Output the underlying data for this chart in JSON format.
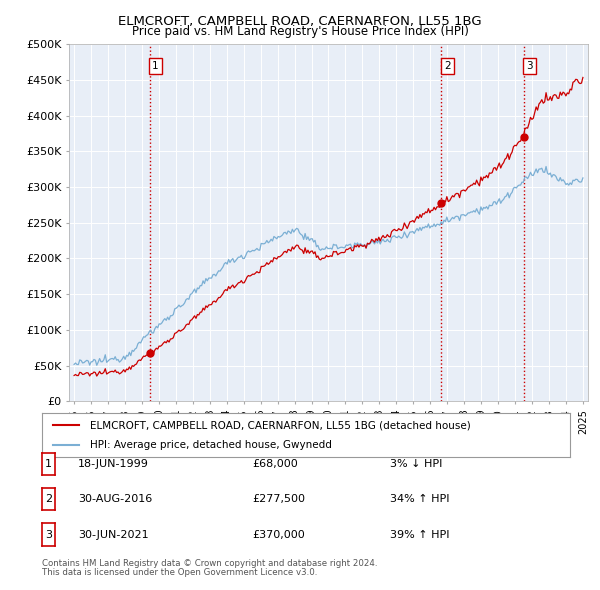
{
  "title1": "ELMCROFT, CAMPBELL ROAD, CAERNARFON, LL55 1BG",
  "title2": "Price paid vs. HM Land Registry's House Price Index (HPI)",
  "fig_bg_color": "#ffffff",
  "plot_bg_color": "#e8eef7",
  "legend_entries": [
    "ELMCROFT, CAMPBELL ROAD, CAERNARFON, LL55 1BG (detached house)",
    "HPI: Average price, detached house, Gwynedd"
  ],
  "legend_colors": [
    "#cc0000",
    "#7bafd4"
  ],
  "sale_year_vals": [
    1999.46,
    2016.66,
    2021.5
  ],
  "sale_prices": [
    68000,
    277500,
    370000
  ],
  "sale_labels": [
    "1",
    "2",
    "3"
  ],
  "footer1": "Contains HM Land Registry data © Crown copyright and database right 2024.",
  "footer2": "This data is licensed under the Open Government Licence v3.0.",
  "ylim": [
    0,
    500000
  ],
  "yticks": [
    0,
    50000,
    100000,
    150000,
    200000,
    250000,
    300000,
    350000,
    400000,
    450000,
    500000
  ],
  "ytick_labels": [
    "£0",
    "£50K",
    "£100K",
    "£150K",
    "£200K",
    "£250K",
    "£300K",
    "£350K",
    "£400K",
    "£450K",
    "£500K"
  ],
  "table_rows": [
    [
      "1",
      "18-JUN-1999",
      "£68,000",
      "3% ↓ HPI"
    ],
    [
      "2",
      "30-AUG-2016",
      "£277,500",
      "34% ↑ HPI"
    ],
    [
      "3",
      "30-JUN-2021",
      "£370,000",
      "39% ↑ HPI"
    ]
  ]
}
